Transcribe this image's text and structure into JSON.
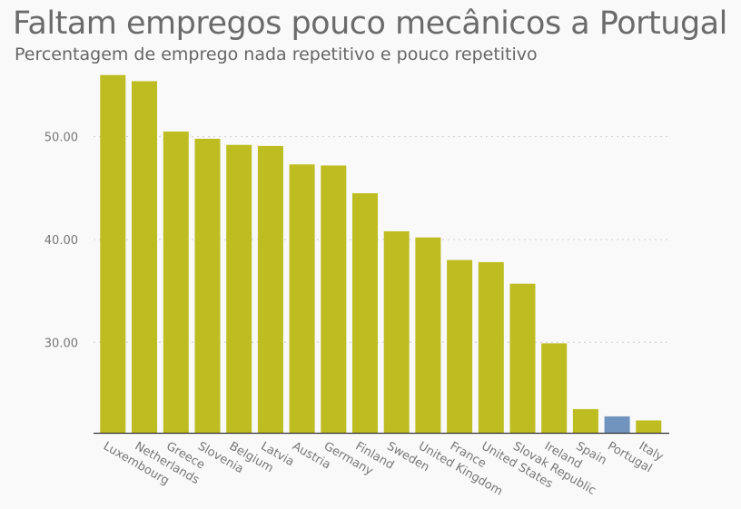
{
  "chart_data": {
    "type": "bar",
    "title": "Faltam empregos pouco mecânicos a Portugal",
    "subtitle": "Percentagem de emprego nada repetitivo e pouco repetitivo",
    "xlabel": "",
    "ylabel": "",
    "ylim": [
      21.2,
      58
    ],
    "yticks": [
      30,
      40,
      50
    ],
    "ytick_labels": [
      "30.00",
      "40.00",
      "50.00"
    ],
    "grid": true,
    "categories": [
      "Luxembourg",
      "Netherlands",
      "Greece",
      "Slovenia",
      "Belgium",
      "Latvia",
      "Austria",
      "Germany",
      "Finland",
      "Sweden",
      "United Kingdom",
      "France",
      "United States",
      "Slovak Republic",
      "Ireland",
      "Spain",
      "Portugal",
      "Italy"
    ],
    "values": [
      56.0,
      55.4,
      50.5,
      49.8,
      49.2,
      49.1,
      47.3,
      47.2,
      44.5,
      40.8,
      40.2,
      38.0,
      37.8,
      35.7,
      29.9,
      23.5,
      22.8,
      22.4
    ],
    "colors": {
      "default": "#bdbd22",
      "highlight": "#7094bd",
      "highlight_category": "Portugal"
    }
  }
}
